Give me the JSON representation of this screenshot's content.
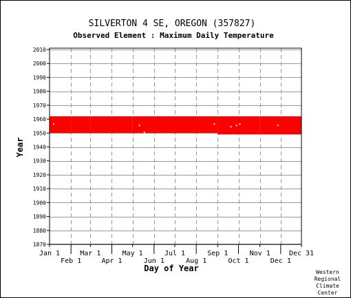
{
  "chart_data": {
    "type": "heatmap",
    "title": "SILVERTON 4 SE, OREGON   (357827)",
    "subtitle": "Observed Element : Maximum Daily Temperature",
    "xlabel": "Day of Year",
    "ylabel": "Year",
    "xlim": [
      1,
      365
    ],
    "ylim": [
      1870,
      2011
    ],
    "y_ticks": [
      1870,
      1880,
      1890,
      1900,
      1910,
      1920,
      1930,
      1940,
      1950,
      1960,
      1970,
      1980,
      1990,
      2000,
      2010
    ],
    "x_ticks_top": [
      {
        "label": "Jan 1",
        "day": 1
      },
      {
        "label": "Mar 1",
        "day": 60
      },
      {
        "label": "May 1",
        "day": 121
      },
      {
        "label": "Jul 1",
        "day": 182
      },
      {
        "label": "Sep 1",
        "day": 244
      },
      {
        "label": "Nov 1",
        "day": 305
      },
      {
        "label": "Dec 31",
        "day": 365
      }
    ],
    "x_ticks_bottom": [
      {
        "label": "Feb 1",
        "day": 32
      },
      {
        "label": "Apr 1",
        "day": 91
      },
      {
        "label": "Jun 1",
        "day": 152
      },
      {
        "label": "Aug 1",
        "day": 213
      },
      {
        "label": "Oct 1",
        "day": 274
      },
      {
        "label": "Dec 1",
        "day": 335
      }
    ],
    "grid": true,
    "data_color": "#ff0000",
    "coverage": [
      {
        "from_day": 1,
        "to_day": 31,
        "from_year": 1950,
        "to_year": 1961
      },
      {
        "from_day": 32,
        "to_day": 59,
        "from_year": 1950,
        "to_year": 1961
      },
      {
        "from_day": 60,
        "to_day": 120,
        "from_year": 1950,
        "to_year": 1961
      },
      {
        "from_day": 121,
        "to_day": 181,
        "from_year": 1950,
        "to_year": 1961
      },
      {
        "from_day": 182,
        "to_day": 243,
        "from_year": 1950,
        "to_year": 1961
      },
      {
        "from_day": 244,
        "to_day": 304,
        "from_year": 1949,
        "to_year": 1961
      },
      {
        "from_day": 305,
        "to_day": 365,
        "from_year": 1949,
        "to_year": 1961
      }
    ],
    "missing": [
      {
        "day": 6,
        "year": 1956
      },
      {
        "day": 130,
        "year": 1955
      },
      {
        "day": 137,
        "year": 1950
      },
      {
        "day": 238,
        "year": 1956
      },
      {
        "day": 262,
        "year": 1954
      },
      {
        "day": 270,
        "year": 1955
      },
      {
        "day": 275,
        "year": 1956
      },
      {
        "day": 330,
        "year": 1955
      }
    ]
  },
  "footer": {
    "credit_lines": [
      "Western",
      "Regional",
      "Climate",
      "Center"
    ]
  }
}
